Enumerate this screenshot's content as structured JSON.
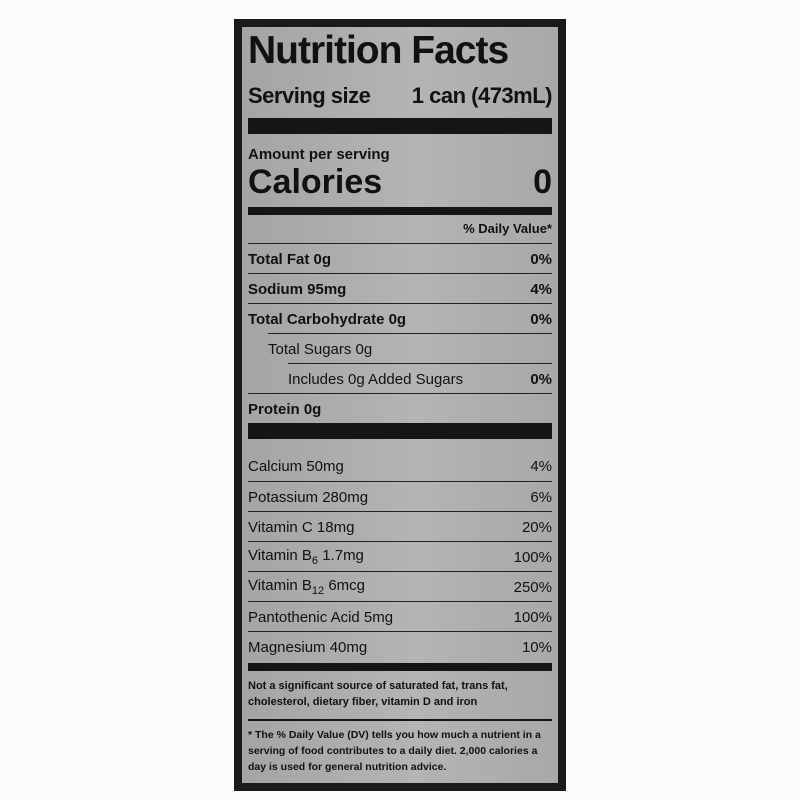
{
  "title": "Nutrition Facts",
  "serving": {
    "label": "Serving size",
    "value": "1 can (473mL)"
  },
  "amount_per_serving": "Amount per serving",
  "calories": {
    "label": "Calories",
    "value": "0"
  },
  "dv_header": "% Daily Value*",
  "nutrients": [
    {
      "name": "Total Fat 0g",
      "dv": "0%"
    },
    {
      "name": "Sodium 95mg",
      "dv": "4%"
    },
    {
      "name": "Total Carbohydrate 0g",
      "dv": "0%"
    },
    {
      "name": "Total Sugars 0g",
      "dv": ""
    },
    {
      "name": "Includes 0g Added Sugars",
      "dv": "0%"
    },
    {
      "name": "Protein 0g",
      "dv": ""
    }
  ],
  "vitamins": [
    {
      "name": "Calcium 50mg",
      "dv": "4%"
    },
    {
      "name": "Potassium 280mg",
      "dv": "6%"
    },
    {
      "name": "Vitamin C 18mg",
      "dv": "20%"
    },
    {
      "name_a": "Vitamin B",
      "sub": "6",
      "name_b": " 1.7mg",
      "dv": "100%"
    },
    {
      "name_a": "Vitamin B",
      "sub": "12",
      "name_b": " 6mcg",
      "dv": "250%"
    },
    {
      "name": "Pantothenic Acid 5mg",
      "dv": "100%"
    },
    {
      "name": "Magnesium 40mg",
      "dv": "10%"
    }
  ],
  "not_significant": "Not a significant source of saturated fat, trans fat, cholesterol, dietary fiber, vitamin D and iron",
  "footnote": "* The % Daily Value (DV) tells you how much a nutrient in a serving of food contributes to a daily diet. 2,000 calories a day is used for general nutrition advice."
}
